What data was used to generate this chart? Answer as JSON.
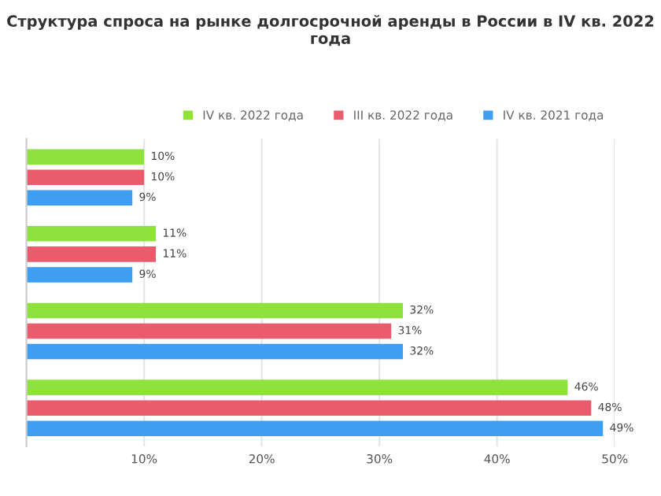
{
  "chart_data": {
    "type": "bar",
    "orientation": "horizontal",
    "title": "Структура спроса на рынке долгосрочной аренды в России в IV кв. 2022 года",
    "categories": [
      null,
      null,
      null,
      null
    ],
    "series": [
      {
        "name": "IV кв. 2022 года",
        "color": "#8fe23c",
        "values": [
          10,
          11,
          32,
          46
        ],
        "value_labels": [
          "10%",
          "11%",
          "32%",
          "46%"
        ]
      },
      {
        "name": "III кв. 2022 года",
        "color": "#ea5b6c",
        "values": [
          10,
          11,
          31,
          48
        ],
        "value_labels": [
          "10%",
          "11%",
          "31%",
          "48%"
        ]
      },
      {
        "name": "IV кв. 2021 года",
        "color": "#3d9ef2",
        "values": [
          9,
          9,
          32,
          49
        ],
        "value_labels": [
          "9%",
          "9%",
          "32%",
          "49%"
        ]
      }
    ],
    "xlim": [
      0,
      50
    ],
    "xticks": [
      {
        "value": 10,
        "label": "10%"
      },
      {
        "value": 20,
        "label": "20%"
      },
      {
        "value": 30,
        "label": "30%"
      },
      {
        "value": 40,
        "label": "40%"
      },
      {
        "value": 50,
        "label": "50%"
      }
    ],
    "grid": "x",
    "legend": "top right"
  }
}
